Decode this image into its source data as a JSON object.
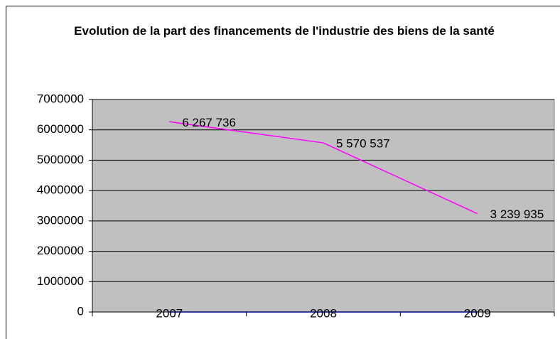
{
  "chart_data": {
    "type": "line",
    "title": "Evolution de la part des financements de l'industrie des biens de la santé",
    "categories": [
      "2007",
      "2008",
      "2009"
    ],
    "series": [
      {
        "color": "#ff00ff",
        "values": [
          6267736,
          5570537,
          3239935
        ],
        "value_labels": [
          "6 267 736",
          "5 570 537",
          "3 239 935"
        ]
      },
      {
        "color": "#000080",
        "values": [
          0,
          0,
          0
        ]
      }
    ],
    "ylim": [
      0,
      7000000
    ],
    "yticks": [
      0,
      1000000,
      2000000,
      3000000,
      4000000,
      5000000,
      6000000,
      7000000
    ],
    "grid": true
  }
}
